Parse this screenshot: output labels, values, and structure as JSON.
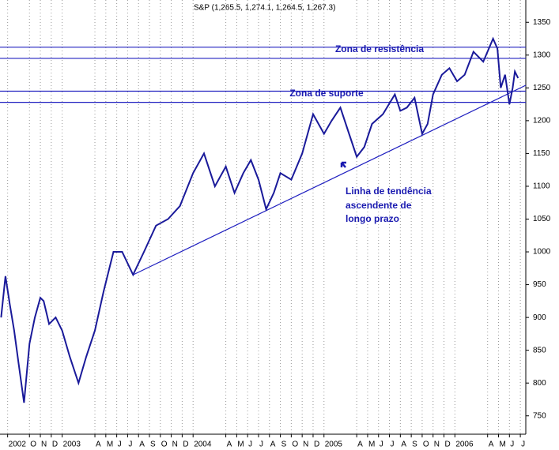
{
  "chart_data": {
    "type": "line",
    "title": "S&P (1,265.5, 1,274.1, 1,264.5, 1,267.3)",
    "x": [
      -5.6,
      -5.2,
      -4.8,
      -4.4,
      -4,
      -3.5,
      -3,
      -2.5,
      -2,
      -1.7,
      -1.2,
      -0.6,
      0,
      0.7,
      1.5,
      2.2,
      3,
      3.8,
      4.7,
      5.5,
      6.5,
      7.5,
      8.6,
      9.7,
      10.8,
      12,
      13,
      14,
      15,
      15.8,
      16.6,
      17.3,
      18,
      18.7,
      19.4,
      20,
      21,
      22,
      23,
      24,
      24.7,
      25.5,
      26.3,
      27,
      27.7,
      28.4,
      29.4,
      30.5,
      31,
      31.6,
      32.3,
      33,
      33.5,
      34,
      34.8,
      35.5,
      36.2,
      36.9,
      37.7,
      38.6,
      39.5,
      39.9,
      40.2,
      40.6,
      41,
      41.3,
      41.5,
      41.8
    ],
    "series": [
      {
        "name": "S&P",
        "color": "#1a1a9a",
        "values": [
          900,
          963,
          920,
          880,
          830,
          770,
          860,
          900,
          930,
          925,
          890,
          900,
          880,
          840,
          800,
          840,
          880,
          940,
          1000,
          1000,
          965,
          1000,
          1040,
          1050,
          1070,
          1120,
          1150,
          1100,
          1130,
          1090,
          1120,
          1140,
          1110,
          1065,
          1090,
          1120,
          1110,
          1150,
          1210,
          1180,
          1200,
          1220,
          1180,
          1145,
          1160,
          1195,
          1210,
          1240,
          1215,
          1220,
          1235,
          1180,
          1195,
          1240,
          1270,
          1280,
          1260,
          1270,
          1305,
          1290,
          1325,
          1310,
          1250,
          1270,
          1225,
          1250,
          1275,
          1265
        ]
      }
    ],
    "hlines": [
      1312,
      1295,
      1245,
      1228
    ],
    "trendline": {
      "x": [
        6.5,
        42.5
      ],
      "y": [
        965,
        1254
      ]
    },
    "annotations": [
      "Zona de resistência",
      "Zona de suporte",
      "Linha de tendência",
      "ascendente de",
      "longo prazo"
    ],
    "xlim": [
      -5.7,
      42.5
    ],
    "xticks": [
      {
        "value": -5,
        "label": "2002"
      },
      {
        "value": -3,
        "label": "O"
      },
      {
        "value": -2,
        "label": "N"
      },
      {
        "value": -1,
        "label": "D"
      },
      {
        "value": 0,
        "label": "2003"
      },
      {
        "value": 3,
        "label": "A"
      },
      {
        "value": 4,
        "label": "M"
      },
      {
        "value": 5,
        "label": "J"
      },
      {
        "value": 6,
        "label": "J"
      },
      {
        "value": 7,
        "label": "A"
      },
      {
        "value": 8,
        "label": "S"
      },
      {
        "value": 9,
        "label": "O"
      },
      {
        "value": 10,
        "label": "N"
      },
      {
        "value": 11,
        "label": "D"
      },
      {
        "value": 12,
        "label": "2004"
      },
      {
        "value": 15,
        "label": "A"
      },
      {
        "value": 16,
        "label": "M"
      },
      {
        "value": 17,
        "label": "J"
      },
      {
        "value": 18,
        "label": "J"
      },
      {
        "value": 19,
        "label": "A"
      },
      {
        "value": 20,
        "label": "S"
      },
      {
        "value": 21,
        "label": "O"
      },
      {
        "value": 22,
        "label": "N"
      },
      {
        "value": 23,
        "label": "D"
      },
      {
        "value": 24,
        "label": "2005"
      },
      {
        "value": 27,
        "label": "A"
      },
      {
        "value": 28,
        "label": "M"
      },
      {
        "value": 29,
        "label": "J"
      },
      {
        "value": 30,
        "label": "J"
      },
      {
        "value": 31,
        "label": "A"
      },
      {
        "value": 32,
        "label": "S"
      },
      {
        "value": 33,
        "label": "O"
      },
      {
        "value": 34,
        "label": "N"
      },
      {
        "value": 35,
        "label": "D"
      },
      {
        "value": 36,
        "label": "2006"
      },
      {
        "value": 39,
        "label": "A"
      },
      {
        "value": 40,
        "label": "M"
      },
      {
        "value": 41,
        "label": "J"
      },
      {
        "value": 42,
        "label": "J"
      }
    ],
    "ylim": [
      722,
      1384
    ],
    "yticks": [
      750,
      800,
      850,
      900,
      950,
      1000,
      1050,
      1100,
      1150,
      1200,
      1250,
      1300,
      1350
    ],
    "grid": true
  }
}
